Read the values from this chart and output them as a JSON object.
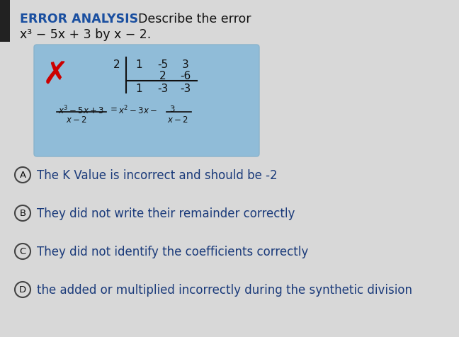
{
  "title_bold": "ERROR ANALYSIS",
  "title_regular": "Describe the error",
  "subtitle": "x³ − 5x + 3 by x − 2.",
  "bg_color": "#d8d8d8",
  "box_color": "#90bcd8",
  "box_border": "#7aaac8",
  "synthetic_k": "2",
  "syn_row1": [
    "1",
    "-5",
    "3"
  ],
  "syn_row2": [
    "2",
    "-6"
  ],
  "syn_row3": [
    "1",
    "-3",
    "-3"
  ],
  "options": [
    {
      "letter": "A",
      "text": "The K Value is incorrect and should be -2"
    },
    {
      "letter": "B",
      "text": "They did not write their remainder correctly"
    },
    {
      "letter": "C",
      "text": "They did not identify the coefficients correctly"
    },
    {
      "letter": "D",
      "text": "the added or multiplied incorrectly during the synthetic division"
    }
  ],
  "title_color": "#1a4fa0",
  "text_color": "#1a1a1a",
  "dark_text": "#111111",
  "x_color": "#cc0000",
  "circle_color": "#444444",
  "option_text_color": "#1a3a7a",
  "font_size_title": 12.5,
  "font_size_subtitle": 12.5,
  "font_size_box": 11,
  "font_size_options": 12
}
